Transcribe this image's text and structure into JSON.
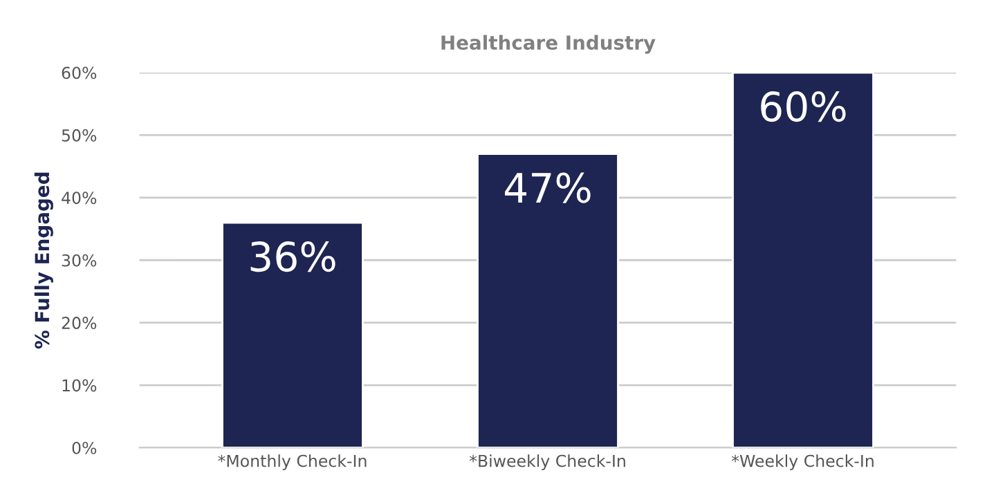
{
  "chart_data": {
    "type": "bar",
    "title": "Healthcare Industry",
    "ylabel": "% Fully Engaged",
    "categories": [
      "*Monthly Check-In",
      "*Biweekly Check-In",
      "*Weekly Check-In"
    ],
    "values": [
      36,
      47,
      60
    ],
    "value_labels": [
      "36%",
      "47%",
      "60%"
    ],
    "color": "#1e2552",
    "ylim": [
      0,
      60
    ],
    "yticks": [
      {
        "value": 0,
        "label": "0%"
      },
      {
        "value": 10,
        "label": "10%"
      },
      {
        "value": 20,
        "label": "20%"
      },
      {
        "value": 30,
        "label": "30%"
      },
      {
        "value": 40,
        "label": "40%"
      },
      {
        "value": 50,
        "label": "50%"
      },
      {
        "value": 60,
        "label": "60%"
      }
    ],
    "grid": "y",
    "legend": false
  }
}
